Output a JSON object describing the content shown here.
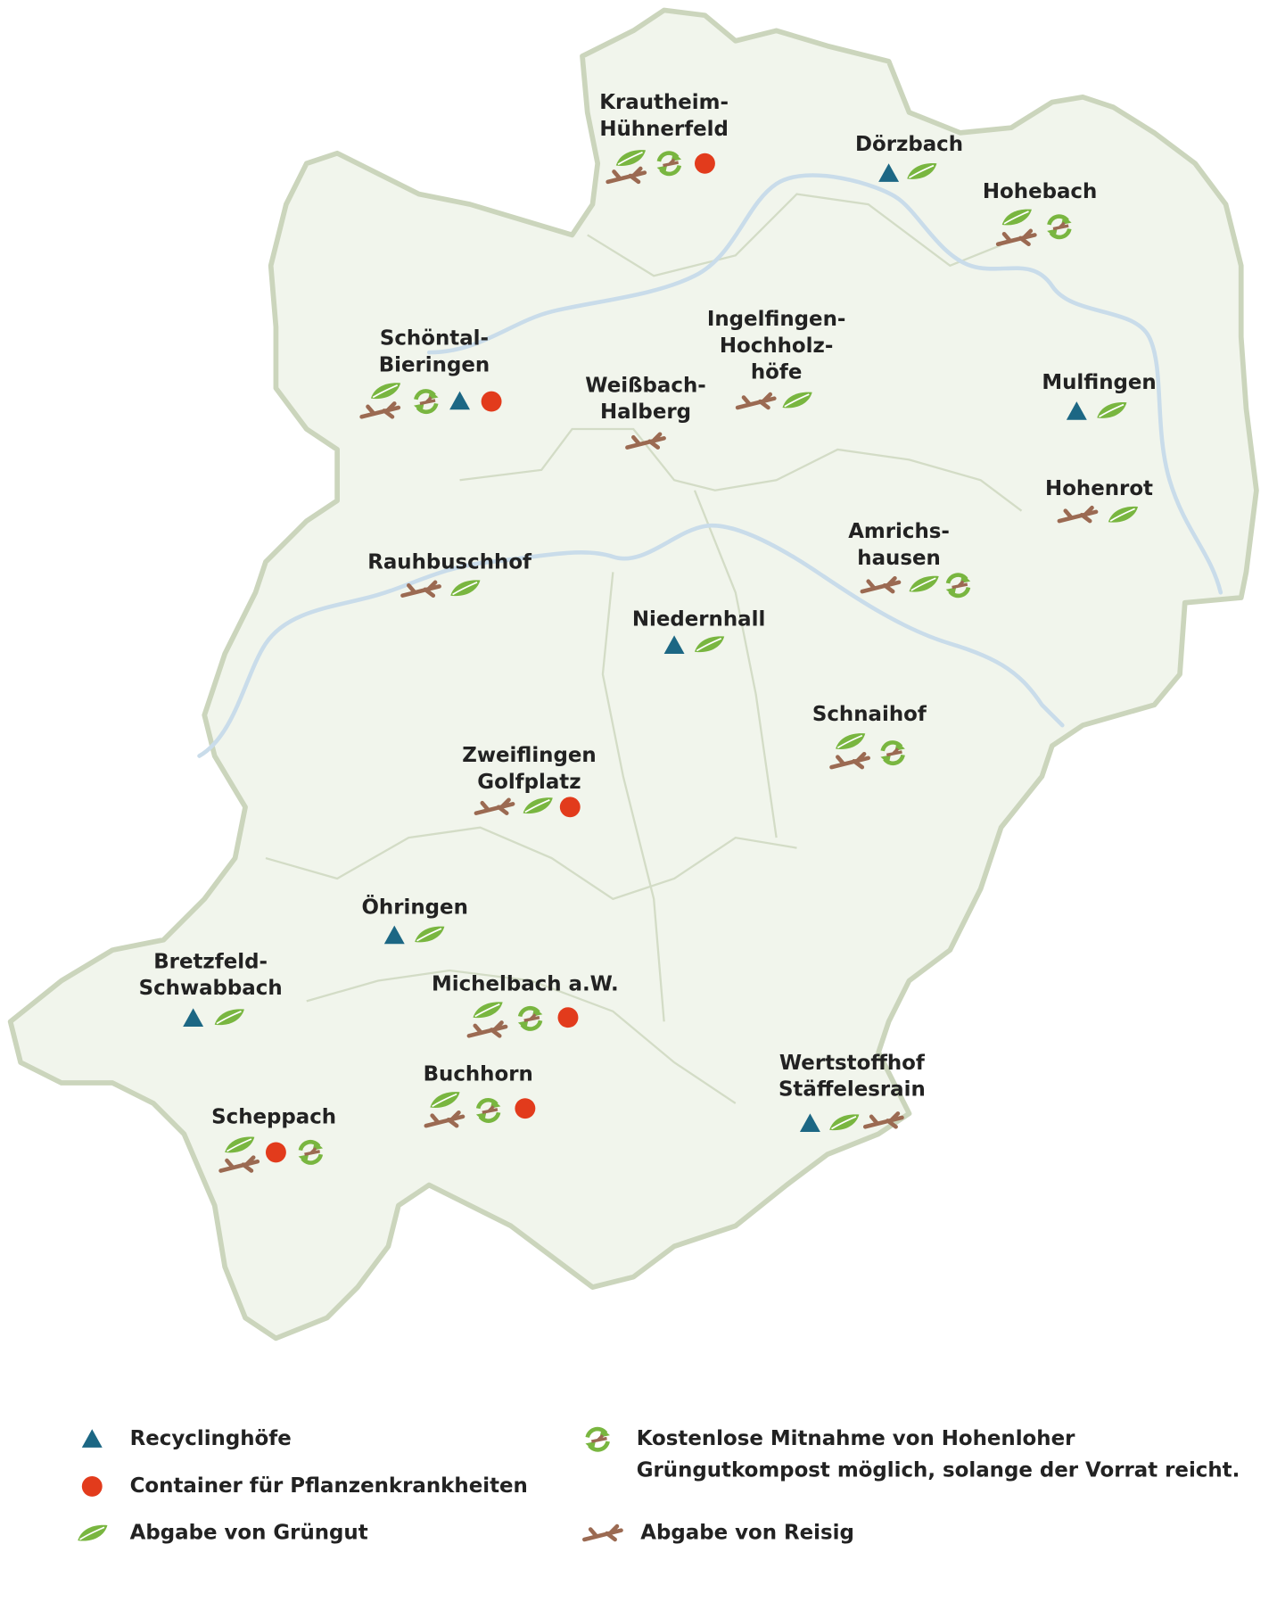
{
  "places": [
    {
      "label": [
        "Krautheim-",
        "Hühnerfeld"
      ]
    },
    {
      "label": [
        "Dörzbach"
      ]
    },
    {
      "label": [
        "Hohebach"
      ]
    },
    {
      "label": [
        "Schöntal-",
        "Bieringen"
      ]
    },
    {
      "label": [
        "Ingelfingen-",
        "Hochholz-",
        "höfe"
      ]
    },
    {
      "label": [
        "Weißbach-",
        "Halberg"
      ]
    },
    {
      "label": [
        "Mulfingen"
      ]
    },
    {
      "label": [
        "Hohenrot"
      ]
    },
    {
      "label": [
        "Amrichs-",
        "hausen"
      ]
    },
    {
      "label": [
        "Rauhbuschhof"
      ]
    },
    {
      "label": [
        "Niedernhall"
      ]
    },
    {
      "label": [
        "Schnaihof"
      ]
    },
    {
      "label": [
        "Zweiflingen",
        "Golfplatz"
      ]
    },
    {
      "label": [
        "Öhringen"
      ]
    },
    {
      "label": [
        "Bretzfeld-",
        "Schwabbach"
      ]
    },
    {
      "label": [
        "Michelbach a.W."
      ]
    },
    {
      "label": [
        "Buchhorn"
      ]
    },
    {
      "label": [
        "Wertstoffhof",
        "Stäffelesrain"
      ]
    },
    {
      "label": [
        "Scheppach"
      ]
    }
  ],
  "legend": [
    {
      "label": [
        "Recyclinghöfe"
      ]
    },
    {
      "label": [
        "Container für Pflanzenkrankheiten"
      ]
    },
    {
      "label": [
        "Abgabe von Grüngut"
      ]
    },
    {
      "label": [
        "Kostenlose Mitnahme von Hohenloher",
        "Grüngutkompost möglich, solange der Vorrat reicht."
      ]
    },
    {
      "label": [
        "Abgabe von Reisig"
      ]
    }
  ]
}
